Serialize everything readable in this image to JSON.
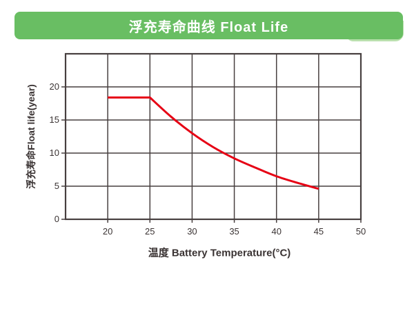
{
  "header": {
    "title": "浮充寿命曲线 Float Life",
    "bg_color": "#69be63",
    "accent_color": "#b9e0ad",
    "text_color": "#ffffff"
  },
  "chart_data": {
    "type": "line",
    "title": "浮充寿命曲线 Float Life",
    "xlabel": "温度 Battery Temperature(°C)",
    "ylabel": "浮充寿命Float life(year)",
    "xlim": [
      15,
      50
    ],
    "ylim": [
      0,
      25
    ],
    "x_ticks": [
      20,
      25,
      30,
      35,
      40,
      45,
      50
    ],
    "y_ticks": [
      0,
      5,
      10,
      15,
      20
    ],
    "grid": true,
    "legend": "none",
    "line_color": "#e60014",
    "grid_color": "#473f3f",
    "text_color": "#3a3333",
    "series": [
      {
        "name": "Float Life",
        "x": [
          20,
          25,
          27.5,
          30,
          32.5,
          35,
          37.5,
          40,
          42.5,
          45
        ],
        "y": [
          18.4,
          18.4,
          15.5,
          13.0,
          10.9,
          9.2,
          7.8,
          6.5,
          5.5,
          4.6
        ]
      }
    ]
  }
}
